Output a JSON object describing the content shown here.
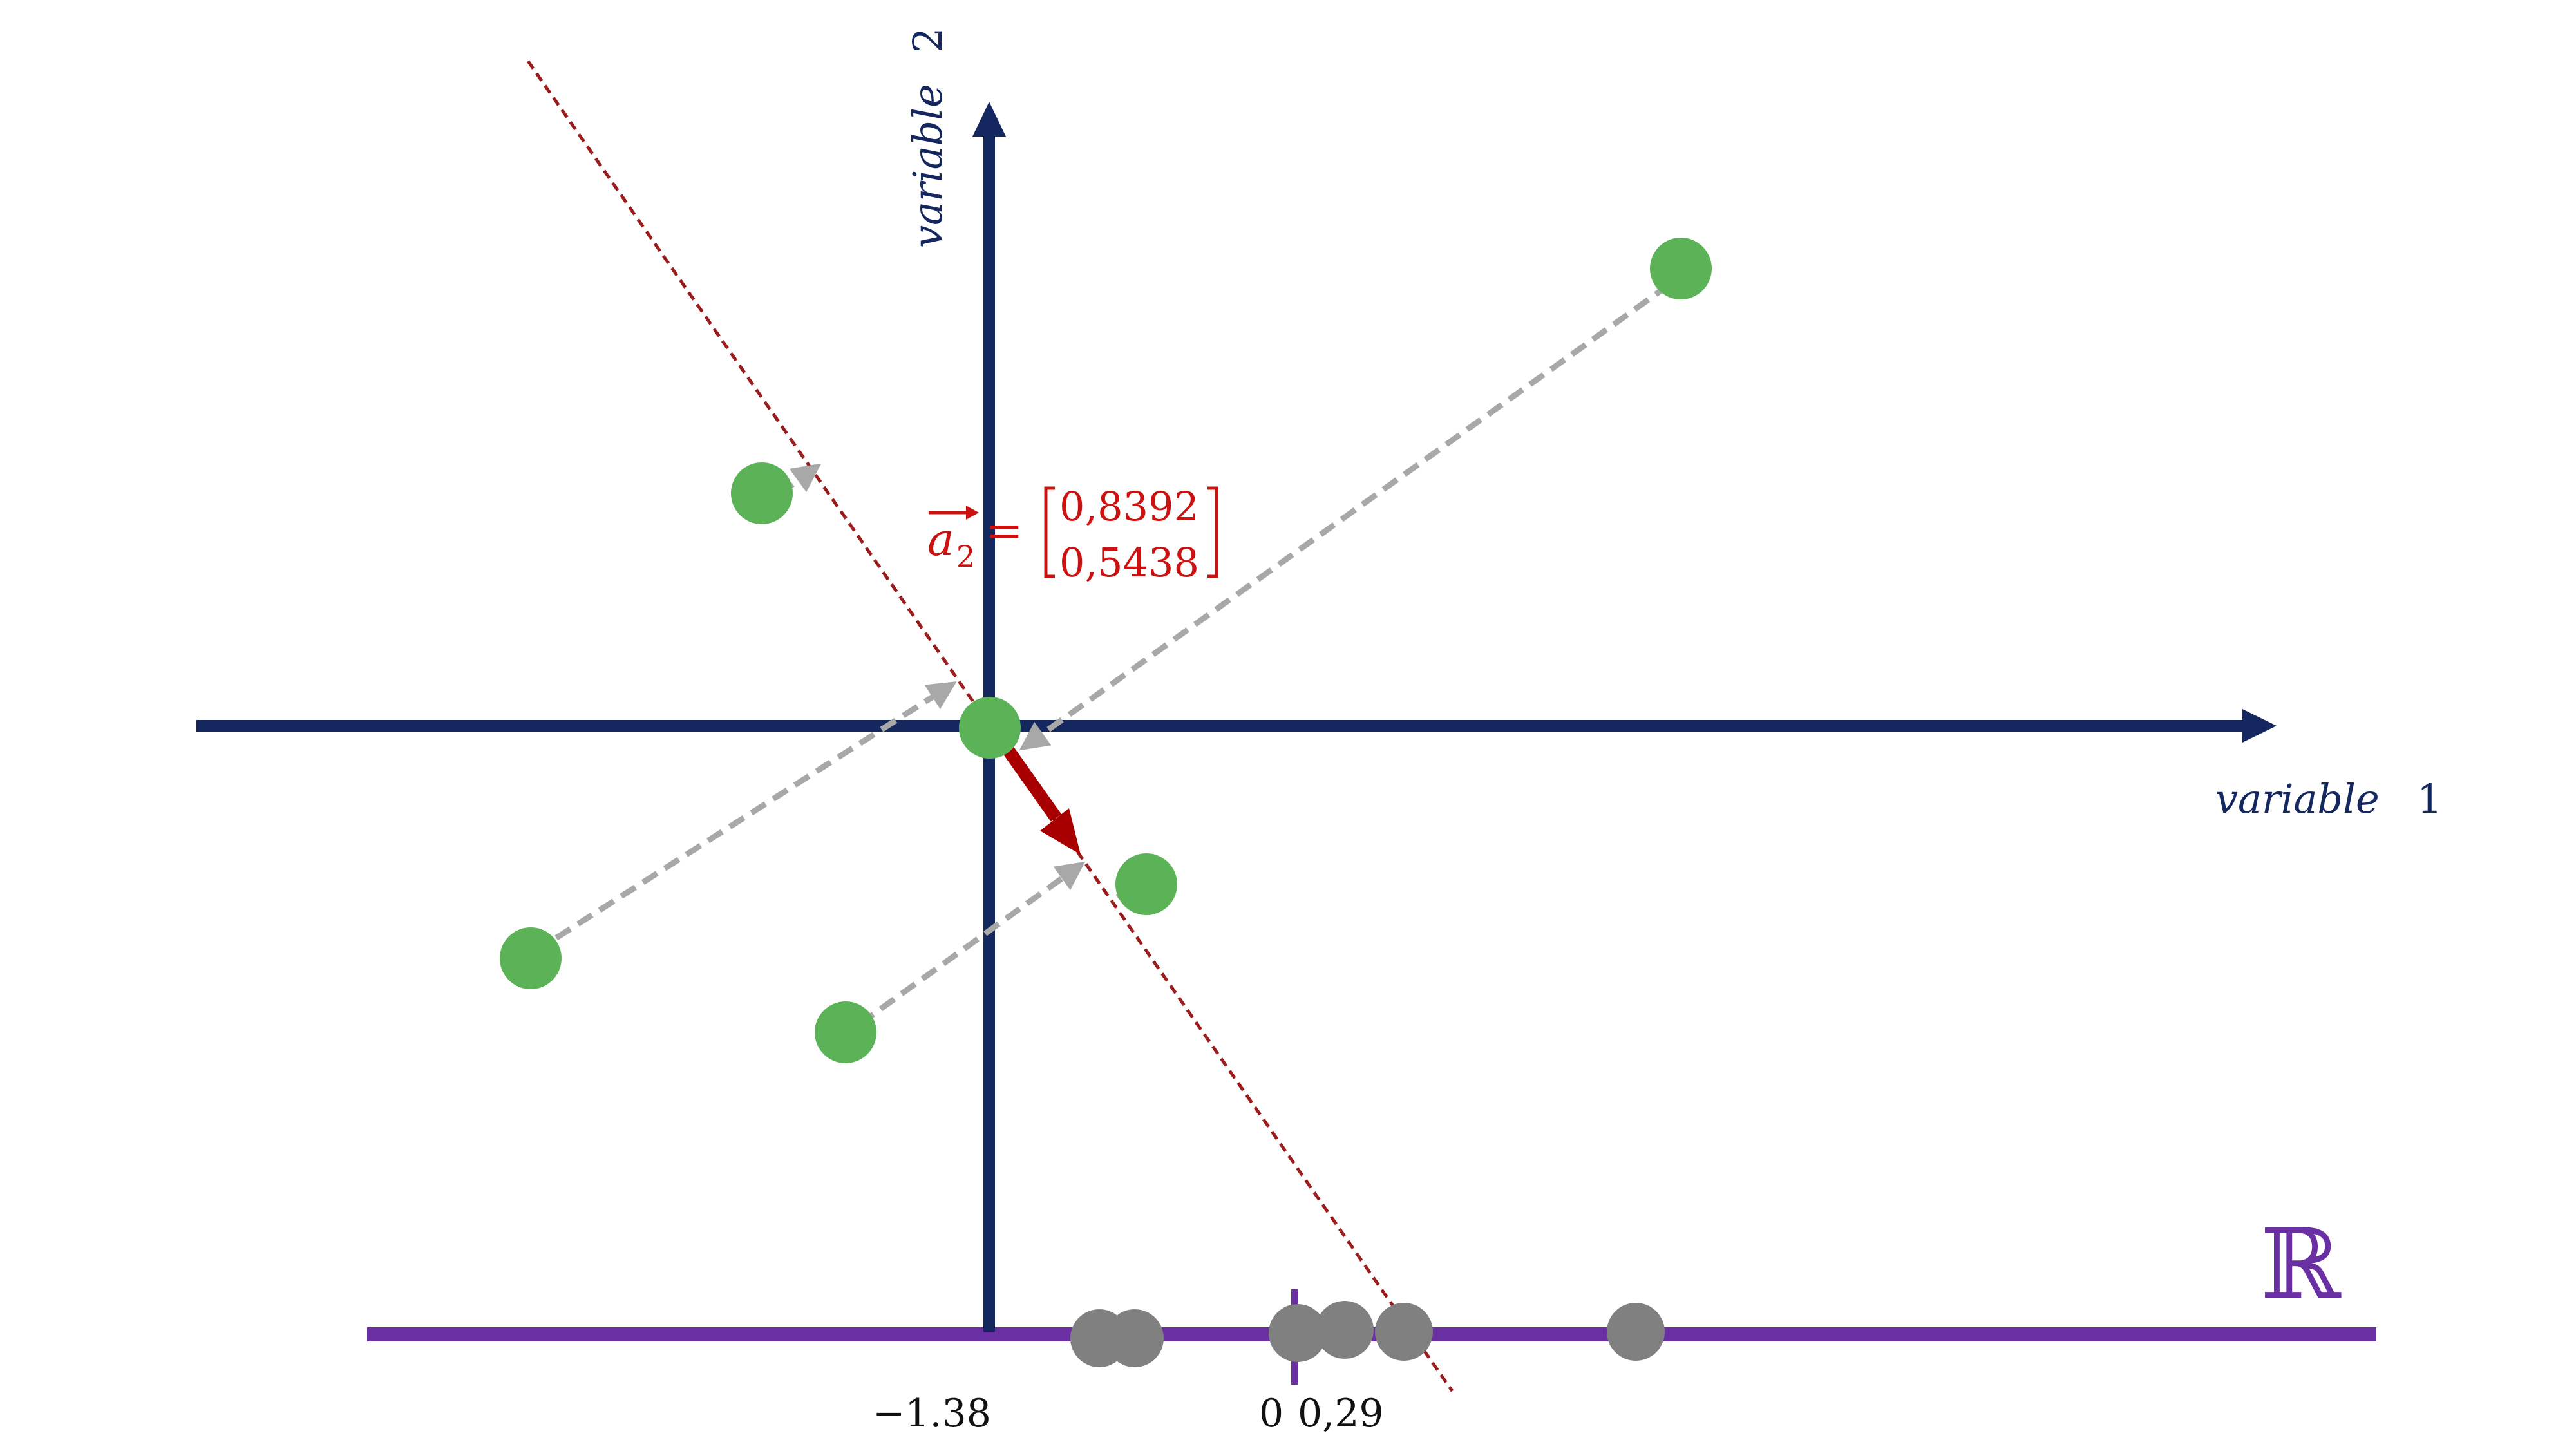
{
  "labels": {
    "x_axis_word": "variable",
    "x_axis_num": "1",
    "y_axis_word": "variable",
    "y_axis_num": "2",
    "real_line": "ℝ",
    "tick_left": "−1.38",
    "tick_zero": "0",
    "tick_right": "0,29"
  },
  "vector": {
    "name": "a",
    "subscript": "2",
    "equals": "=",
    "component_1": "0,8392",
    "component_2": "0,5438"
  },
  "colors": {
    "axes": "#14275e",
    "points": "#5cb256",
    "projected_points": "#808080",
    "vector": "#a80000",
    "projection_line": "#9b1c1c",
    "projection_arrows": "#a8a8a8",
    "real_line": "#6a2fa3"
  },
  "icons": {
    "real_line_symbol": "double-struck-R"
  }
}
